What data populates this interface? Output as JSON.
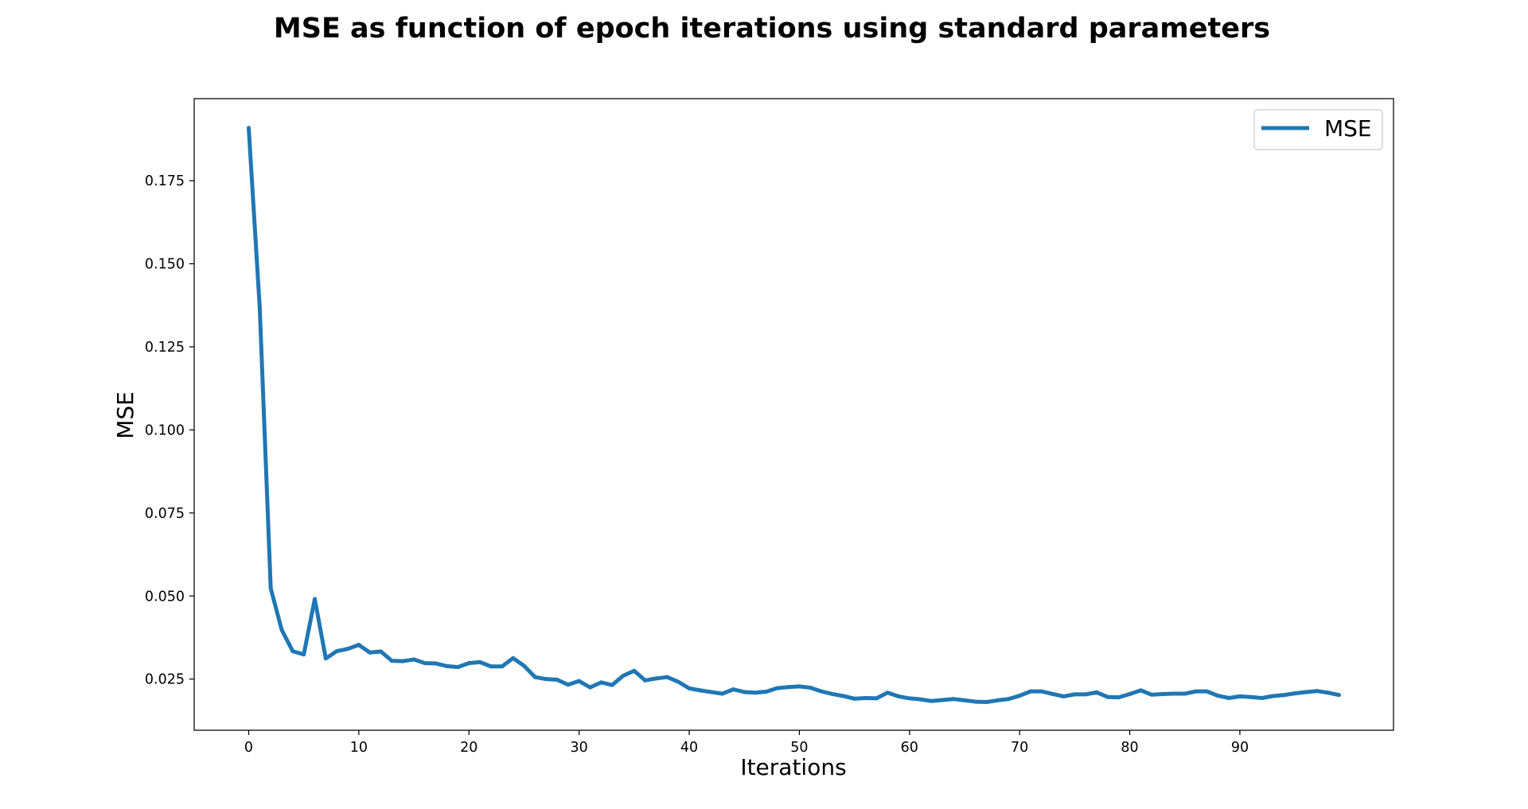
{
  "chart_data": {
    "type": "line",
    "title": "MSE as function of epoch iterations using standard parameters",
    "xlabel": "Iterations",
    "ylabel": "MSE",
    "xlim": [
      -4.95,
      103.95
    ],
    "ylim": [
      0.0096,
      0.1997
    ],
    "xticks": [
      0,
      10,
      20,
      30,
      40,
      50,
      60,
      70,
      80,
      90
    ],
    "xtick_labels": [
      "0",
      "10",
      "20",
      "30",
      "40",
      "50",
      "60",
      "70",
      "80",
      "90"
    ],
    "yticks": [
      0.025,
      0.05,
      0.075,
      0.1,
      0.125,
      0.15,
      0.175
    ],
    "ytick_labels": [
      "0.025",
      "0.050",
      "0.075",
      "0.100",
      "0.125",
      "0.150",
      "0.175"
    ],
    "grid": false,
    "legend_position": "top-right",
    "series": [
      {
        "name": "MSE",
        "color": "#1f77b4",
        "x": [
          0,
          1,
          2,
          3,
          4,
          5,
          6,
          7,
          8,
          9,
          10,
          11,
          12,
          13,
          14,
          15,
          16,
          17,
          18,
          19,
          20,
          21,
          22,
          23,
          24,
          25,
          26,
          27,
          28,
          29,
          30,
          31,
          32,
          33,
          34,
          35,
          36,
          37,
          38,
          39,
          40,
          41,
          42,
          43,
          44,
          45,
          46,
          47,
          48,
          49,
          50,
          51,
          52,
          53,
          54,
          55,
          56,
          57,
          58,
          59,
          60,
          61,
          62,
          63,
          64,
          65,
          66,
          67,
          68,
          69,
          70,
          71,
          72,
          73,
          74,
          75,
          76,
          77,
          78,
          79,
          80,
          81,
          82,
          83,
          84,
          85,
          86,
          87,
          88,
          89,
          90,
          91,
          92,
          93,
          94,
          95,
          96,
          97,
          98,
          99
        ],
        "values": [
          0.1909,
          0.1369,
          0.0523,
          0.0398,
          0.0334,
          0.0324,
          0.0491,
          0.0312,
          0.0334,
          0.0341,
          0.0353,
          0.033,
          0.0333,
          0.0305,
          0.0304,
          0.0309,
          0.0298,
          0.0297,
          0.0289,
          0.0286,
          0.0298,
          0.0301,
          0.0288,
          0.0288,
          0.0313,
          0.029,
          0.0256,
          0.025,
          0.0248,
          0.0233,
          0.0244,
          0.0225,
          0.024,
          0.0232,
          0.026,
          0.0275,
          0.0246,
          0.0252,
          0.0256,
          0.0242,
          0.0222,
          0.0216,
          0.0211,
          0.0206,
          0.0219,
          0.0211,
          0.0209,
          0.0212,
          0.0223,
          0.0226,
          0.0228,
          0.0224,
          0.0213,
          0.0205,
          0.0199,
          0.0191,
          0.0193,
          0.0192,
          0.0209,
          0.0198,
          0.0192,
          0.0189,
          0.0184,
          0.0187,
          0.019,
          0.0186,
          0.0182,
          0.0181,
          0.0186,
          0.019,
          0.02,
          0.0213,
          0.0213,
          0.0205,
          0.0198,
          0.0204,
          0.0204,
          0.021,
          0.0196,
          0.0195,
          0.0205,
          0.0216,
          0.0203,
          0.0205,
          0.0206,
          0.0206,
          0.0213,
          0.0213,
          0.02,
          0.0193,
          0.0198,
          0.0196,
          0.0193,
          0.0199,
          0.0202,
          0.0207,
          0.0211,
          0.0214,
          0.0209,
          0.0202
        ]
      }
    ]
  }
}
